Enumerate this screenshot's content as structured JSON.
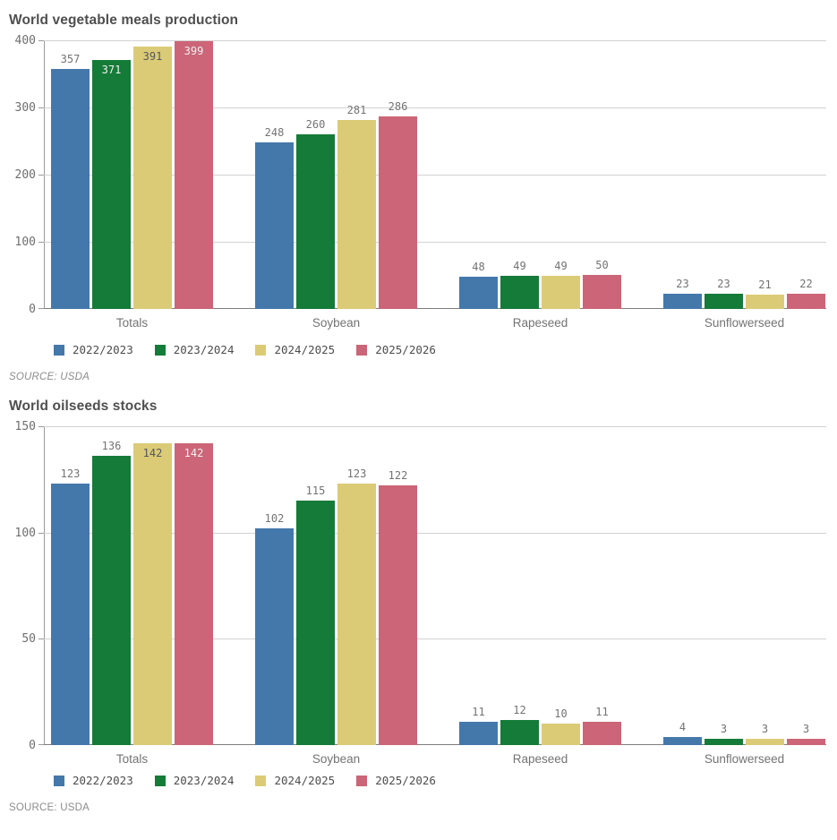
{
  "chart_data": [
    {
      "type": "bar",
      "title": "World vegetable meals production",
      "source": "SOURCE: USDA",
      "categories": [
        "Totals",
        "Soybean",
        "Rapeseed",
        "Sunflowerseed"
      ],
      "series": [
        {
          "name": "2022/2023",
          "color": "#4478AB",
          "values": [
            357,
            248,
            48,
            23
          ]
        },
        {
          "name": "2023/2024",
          "color": "#157B38",
          "values": [
            371,
            260,
            49,
            23
          ]
        },
        {
          "name": "2024/2025",
          "color": "#DBCB76",
          "values": [
            391,
            281,
            49,
            21
          ]
        },
        {
          "name": "2025/2026",
          "color": "#CB6577",
          "values": [
            399,
            286,
            50,
            22
          ]
        }
      ],
      "ylim": [
        0,
        400
      ],
      "yticks": [
        0,
        100,
        200,
        300,
        400
      ],
      "grid": true,
      "legend_position": "bottom-left"
    },
    {
      "type": "bar",
      "title": "World oilseeds stocks",
      "source": "SOURCE: USDA",
      "categories": [
        "Totals",
        "Soybean",
        "Rapeseed",
        "Sunflowerseed"
      ],
      "series": [
        {
          "name": "2022/2023",
          "color": "#4478AB",
          "values": [
            123,
            102,
            11,
            4
          ]
        },
        {
          "name": "2023/2024",
          "color": "#157B38",
          "values": [
            136,
            115,
            12,
            3
          ]
        },
        {
          "name": "2024/2025",
          "color": "#DBCB76",
          "values": [
            142,
            123,
            10,
            3
          ]
        },
        {
          "name": "2025/2026",
          "color": "#CB6577",
          "values": [
            142,
            122,
            11,
            3
          ]
        }
      ],
      "ylim": [
        0,
        150
      ],
      "yticks": [
        0,
        50,
        100,
        150
      ],
      "grid": true,
      "legend_position": "bottom-left"
    }
  ],
  "text_colors": {
    "title": "#4f4f4f",
    "tick_label": "#6e6e6e",
    "category_label": "#737373",
    "value_above": "#737373",
    "value_inside_light": "#F1F1F1",
    "value_inside_dark": "#55555E",
    "legend_label": "#4d4d4d",
    "source": "#8c8c8c"
  },
  "axis_colors": {
    "gridline": "#d2d2d2",
    "x_axis": "#7d7d7d",
    "y_axis": "#9b9b9b"
  }
}
